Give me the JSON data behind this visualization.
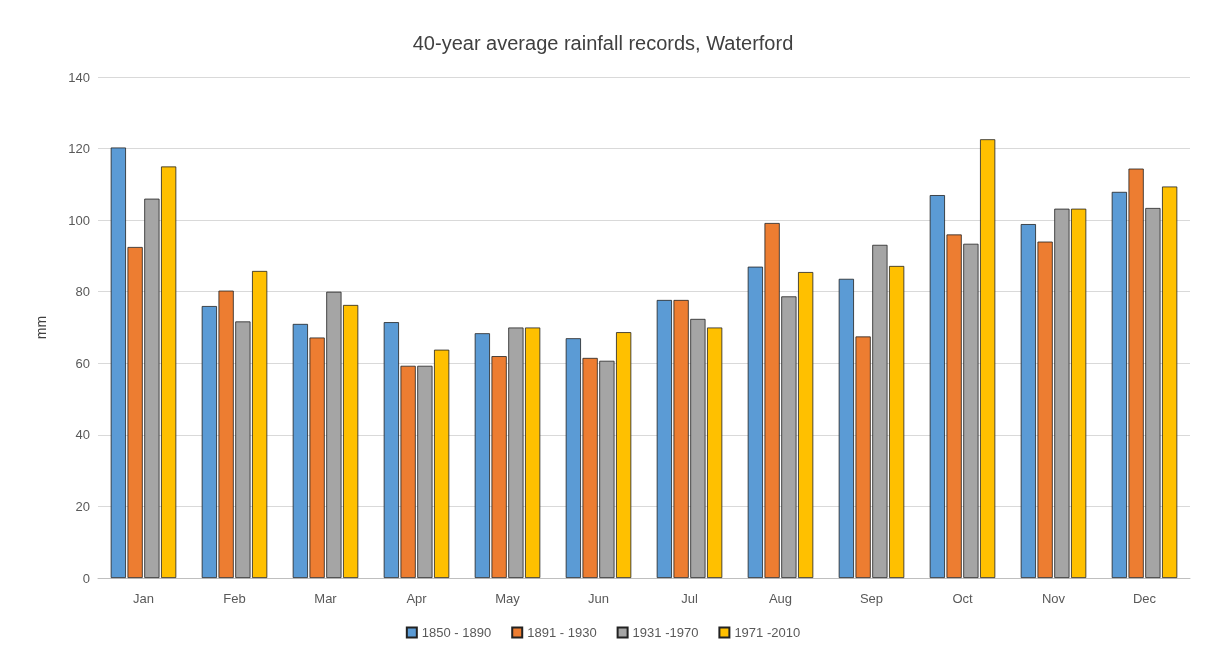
{
  "chart_data": {
    "type": "bar",
    "title": "40-year average rainfall records, Waterford",
    "ylabel": "mm",
    "categories": [
      "Jan",
      "Feb",
      "Mar",
      "Apr",
      "May",
      "Jun",
      "Jul",
      "Aug",
      "Sep",
      "Oct",
      "Nov",
      "Dec"
    ],
    "series": [
      {
        "name": "1850 - 1890",
        "color": "#5b9bd5",
        "values": [
          120.3,
          76,
          71,
          71.5,
          68.4,
          67,
          77.7,
          87,
          83.6,
          107,
          98.9,
          107.9
        ]
      },
      {
        "name": "1891 - 1930",
        "color": "#ed7d31",
        "values": [
          92.5,
          80.3,
          67.2,
          59.3,
          62,
          61.5,
          77.7,
          99.2,
          67.5,
          96,
          94,
          114.4
        ]
      },
      {
        "name": "1931 -1970",
        "color": "#a5a5a5",
        "values": [
          106,
          71.7,
          80,
          59.3,
          70,
          60.7,
          72.4,
          78.7,
          93.1,
          93.4,
          103.2,
          103.4
        ]
      },
      {
        "name": "1971 -2010",
        "color": "#ffc000",
        "values": [
          115,
          85.8,
          76.3,
          63.8,
          70,
          68.7,
          70,
          85.5,
          87.2,
          122.6,
          103.2,
          109.4
        ]
      }
    ],
    "ylim": [
      0,
      140
    ],
    "yticks": [
      0,
      20,
      40,
      60,
      80,
      100,
      120,
      140
    ],
    "grid": "y",
    "legend": "bottom"
  }
}
